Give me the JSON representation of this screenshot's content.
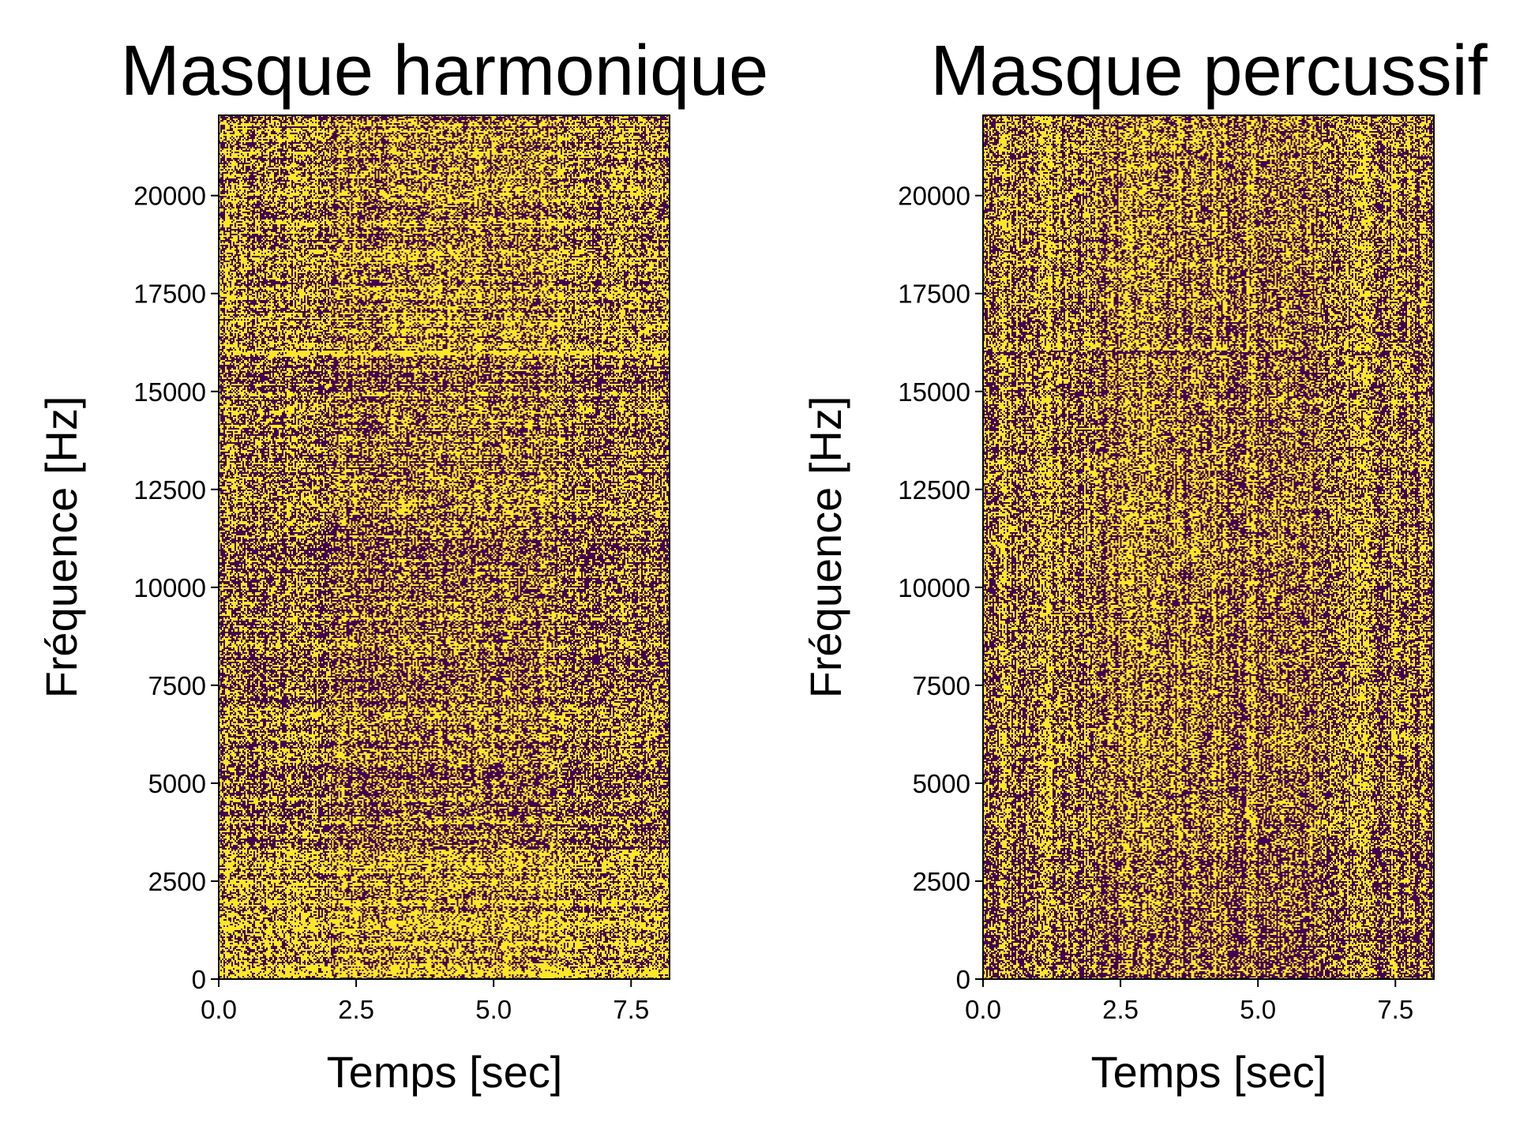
{
  "chart_data": [
    {
      "type": "heatmap",
      "title": "Masque harmonique",
      "xlabel": "Temps [sec]",
      "ylabel": "Fréquence [Hz]",
      "xlim": [
        0.0,
        8.2
      ],
      "ylim": [
        0,
        22050
      ],
      "x_ticks": [
        "0.0",
        "2.5",
        "5.0",
        "7.5"
      ],
      "x_tick_values": [
        0.0,
        2.5,
        5.0,
        7.5
      ],
      "y_ticks": [
        "0",
        "2500",
        "5000",
        "7500",
        "10000",
        "12500",
        "15000",
        "17500",
        "20000"
      ],
      "y_tick_values": [
        0,
        2500,
        5000,
        7500,
        10000,
        12500,
        15000,
        17500,
        20000
      ],
      "values_description": "binary mask (0/1)",
      "colormap": [
        "#440154",
        "#fde725"
      ],
      "mask_bias": "harmonic"
    },
    {
      "type": "heatmap",
      "title": "Masque percussif",
      "xlabel": "Temps [sec]",
      "ylabel": "Fréquence [Hz]",
      "xlim": [
        0.0,
        8.2
      ],
      "ylim": [
        0,
        22050
      ],
      "x_ticks": [
        "0.0",
        "2.5",
        "5.0",
        "7.5"
      ],
      "x_tick_values": [
        0.0,
        2.5,
        5.0,
        7.5
      ],
      "y_ticks": [
        "0",
        "2500",
        "5000",
        "7500",
        "10000",
        "12500",
        "15000",
        "17500",
        "20000"
      ],
      "y_tick_values": [
        0,
        2500,
        5000,
        7500,
        10000,
        12500,
        15000,
        17500,
        20000
      ],
      "values_description": "binary mask (0/1)",
      "colormap": [
        "#440154",
        "#fde725"
      ],
      "mask_bias": "percussive"
    }
  ]
}
